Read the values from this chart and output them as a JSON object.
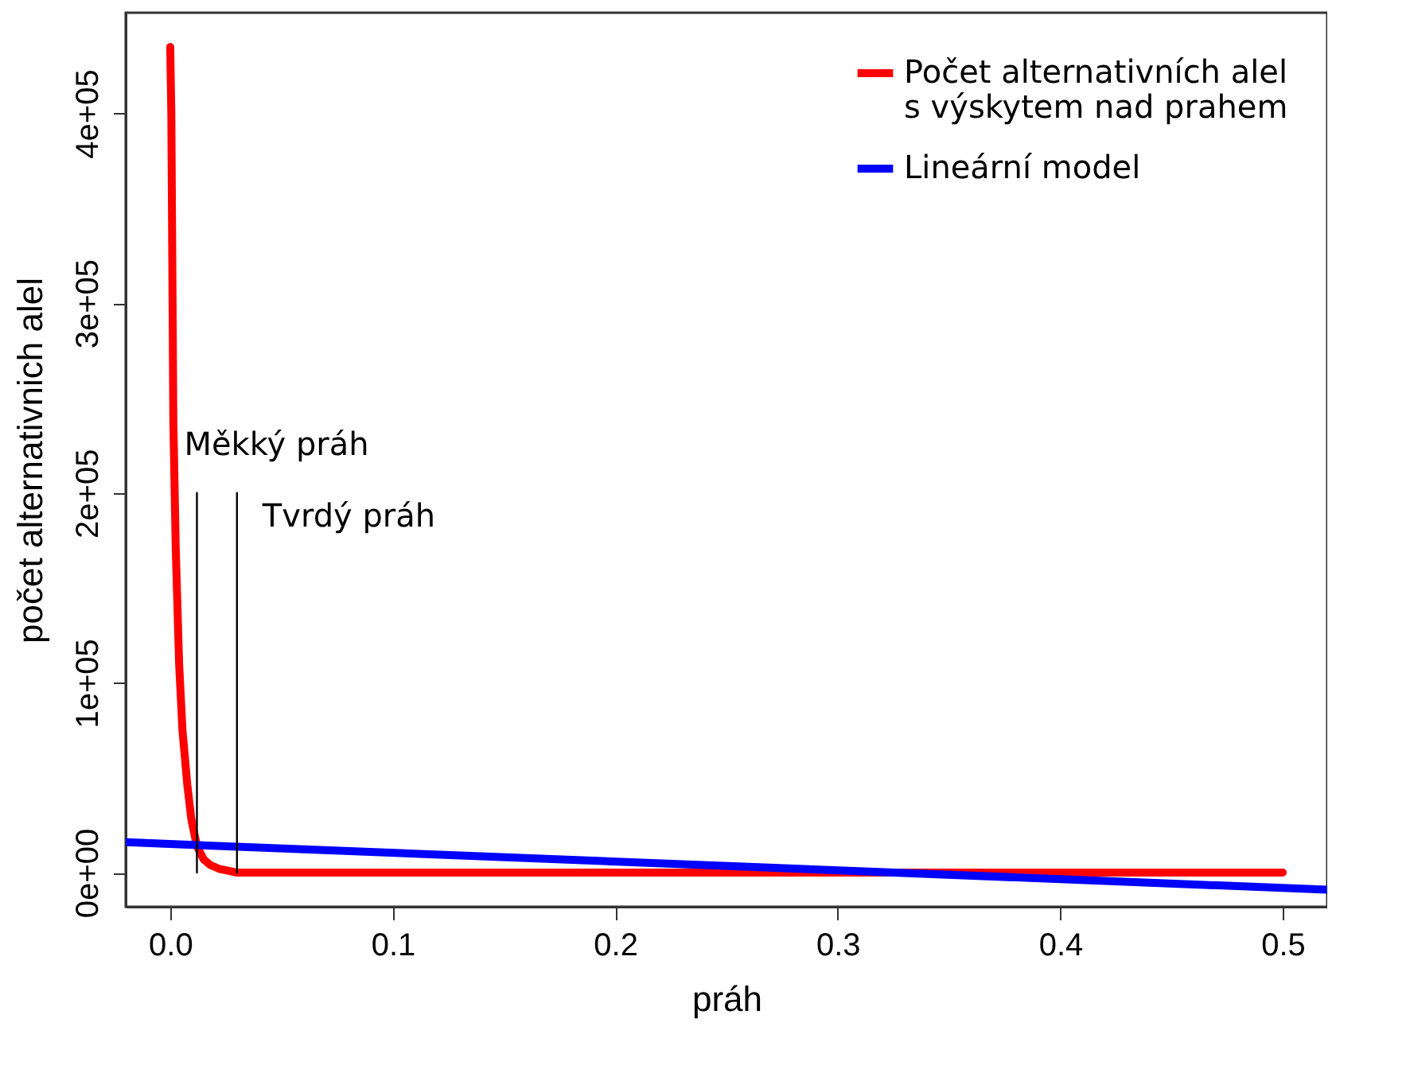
{
  "chart_data": {
    "type": "line",
    "xlabel": "práh",
    "ylabel": "počet alternativnich alel",
    "xlim": [
      -0.02,
      0.52
    ],
    "ylim": [
      -18000,
      453000
    ],
    "xticks": [
      {
        "value": 0,
        "label": "0.0"
      },
      {
        "value": 0.1,
        "label": "0.1"
      },
      {
        "value": 0.2,
        "label": "0.2"
      },
      {
        "value": 0.3,
        "label": "0.3"
      },
      {
        "value": 0.4,
        "label": "0.4"
      },
      {
        "value": 0.5,
        "label": "0.5"
      }
    ],
    "yticks": [
      {
        "value": 0,
        "label": "0e+00"
      },
      {
        "value": 100000,
        "label": "1e+05"
      },
      {
        "value": 200000,
        "label": "2e+05"
      },
      {
        "value": 300000,
        "label": "3e+05"
      },
      {
        "value": 400000,
        "label": "4e+05"
      }
    ],
    "grid": false,
    "legend": "top right",
    "line_style": "solid",
    "marker": "none",
    "series": [
      {
        "name": "Počet alternativních alel\ns výskytem nad prahem",
        "color": "#ff0000",
        "x": [
          0,
          0.0005,
          0.0014,
          0.0025,
          0.004,
          0.0055,
          0.0077,
          0.0095,
          0.012,
          0.015,
          0.018,
          0.022,
          0.026,
          0.03,
          0.05,
          0.1,
          0.2,
          0.3,
          0.4,
          0.5
        ],
        "values": [
          435000,
          400000,
          238000,
          170000,
          110000,
          75000,
          46000,
          28000,
          14000,
          7000,
          4000,
          2000,
          1000,
          0,
          0,
          0,
          0,
          0,
          0,
          0
        ]
      },
      {
        "name": "Lineární model",
        "color": "#0000ff",
        "x": [
          -0.02,
          0.52
        ],
        "values": [
          16000,
          -9000
        ]
      },
      {
        "color": "#000000",
        "x": [
          0.012,
          0.012
        ],
        "values": [
          0,
          200000
        ]
      },
      {
        "color": "#000000",
        "x": [
          0.03,
          0.03
        ],
        "values": [
          0,
          200000
        ]
      }
    ],
    "annotations": [
      {
        "text": "Měkký práh",
        "x": 0.012,
        "y": 200000
      },
      {
        "text": "Tvrdý práh",
        "x": 0.03,
        "y": 200000
      }
    ]
  }
}
